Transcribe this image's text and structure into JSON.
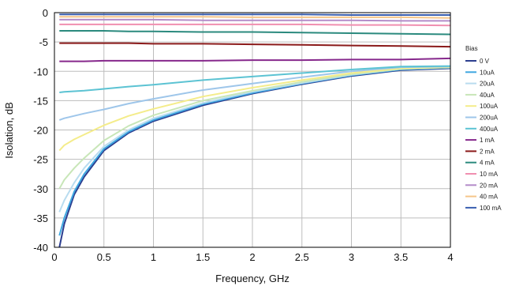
{
  "chart_data": {
    "type": "line",
    "xlabel": "Frequency, GHz",
    "ylabel": "Isolation, dB",
    "xlim": [
      0,
      4
    ],
    "ylim": [
      -40,
      0
    ],
    "x_ticks": [
      "0",
      "0.5",
      "1",
      "1.5",
      "2",
      "2.5",
      "3",
      "3.5",
      "4"
    ],
    "y_ticks": [
      "0",
      "-5",
      "-10",
      "-15",
      "-20",
      "-25",
      "-30",
      "-35",
      "-40"
    ],
    "grid": true,
    "legend_title": "Bias",
    "legend_position": "right",
    "x": [
      0.05,
      0.1,
      0.2,
      0.3,
      0.5,
      0.75,
      1.0,
      1.5,
      2.0,
      2.5,
      3.0,
      3.5,
      4.0
    ],
    "series": [
      {
        "name": "0 V",
        "color": "#2c3e8f",
        "values": [
          -40.0,
          -36.0,
          -31.0,
          -28.0,
          -23.5,
          -20.5,
          -18.5,
          -15.8,
          -13.8,
          -12.2,
          -10.8,
          -9.8,
          -9.5
        ]
      },
      {
        "name": "10uA",
        "color": "#3fa7e0",
        "values": [
          -38.0,
          -35.0,
          -30.5,
          -27.5,
          -23.2,
          -20.3,
          -18.3,
          -15.6,
          -13.7,
          -12.1,
          -10.7,
          -9.7,
          -9.4
        ]
      },
      {
        "name": "20uA",
        "color": "#b9dcef",
        "values": [
          -34.0,
          -32.0,
          -29.0,
          -26.5,
          -22.8,
          -20.0,
          -18.0,
          -15.4,
          -13.5,
          -12.0,
          -10.6,
          -9.6,
          -9.3
        ]
      },
      {
        "name": "40uA",
        "color": "#c8e6b8",
        "values": [
          -30.0,
          -28.5,
          -26.5,
          -24.8,
          -21.8,
          -19.3,
          -17.5,
          -15.0,
          -13.3,
          -11.8,
          -10.5,
          -9.6,
          -9.3
        ]
      },
      {
        "name": "100uA",
        "color": "#f4ec8a",
        "values": [
          -23.5,
          -22.6,
          -21.6,
          -20.8,
          -19.2,
          -17.6,
          -16.4,
          -14.3,
          -12.8,
          -11.5,
          -10.3,
          -9.5,
          -9.3
        ]
      },
      {
        "name": "200uA",
        "color": "#9ec6ea",
        "values": [
          -18.3,
          -18.0,
          -17.6,
          -17.2,
          -16.5,
          -15.5,
          -14.7,
          -13.2,
          -12.1,
          -11.0,
          -10.0,
          -9.3,
          -9.2
        ]
      },
      {
        "name": "400uA",
        "color": "#5cc3d3",
        "values": [
          -13.6,
          -13.5,
          -13.4,
          -13.3,
          -13.0,
          -12.6,
          -12.3,
          -11.5,
          -10.9,
          -10.3,
          -9.7,
          -9.2,
          -9.1
        ]
      },
      {
        "name": "1 mA",
        "color": "#86288c",
        "values": [
          -8.3,
          -8.3,
          -8.3,
          -8.3,
          -8.2,
          -8.2,
          -8.2,
          -8.2,
          -8.1,
          -8.1,
          -8.0,
          -8.0,
          -7.8
        ]
      },
      {
        "name": "2 mA",
        "color": "#8b1a1a",
        "values": [
          -5.2,
          -5.2,
          -5.2,
          -5.2,
          -5.2,
          -5.2,
          -5.3,
          -5.3,
          -5.4,
          -5.5,
          -5.6,
          -5.7,
          -5.8
        ]
      },
      {
        "name": "4 mA",
        "color": "#2b8a7e",
        "values": [
          -3.1,
          -3.1,
          -3.1,
          -3.1,
          -3.1,
          -3.2,
          -3.2,
          -3.3,
          -3.3,
          -3.4,
          -3.5,
          -3.6,
          -3.7
        ]
      },
      {
        "name": "10 mA",
        "color": "#f08fb0",
        "values": [
          -2.0,
          -2.0,
          -2.0,
          -2.0,
          -2.0,
          -2.0,
          -2.0,
          -2.0,
          -2.0,
          -2.0,
          -2.1,
          -2.1,
          -2.2
        ]
      },
      {
        "name": "20 mA",
        "color": "#b48cc9",
        "values": [
          -1.2,
          -1.2,
          -1.2,
          -1.2,
          -1.2,
          -1.2,
          -1.2,
          -1.3,
          -1.3,
          -1.3,
          -1.3,
          -1.4,
          -1.4
        ]
      },
      {
        "name": "40 mA",
        "color": "#f5c58a",
        "values": [
          -0.7,
          -0.7,
          -0.7,
          -0.7,
          -0.7,
          -0.7,
          -0.7,
          -0.7,
          -0.8,
          -0.8,
          -0.8,
          -0.8,
          -0.9
        ]
      },
      {
        "name": "100 mA",
        "color": "#3a5fb0",
        "values": [
          -0.3,
          -0.3,
          -0.3,
          -0.3,
          -0.3,
          -0.3,
          -0.3,
          -0.3,
          -0.3,
          -0.3,
          -0.4,
          -0.4,
          -0.4
        ]
      }
    ]
  }
}
